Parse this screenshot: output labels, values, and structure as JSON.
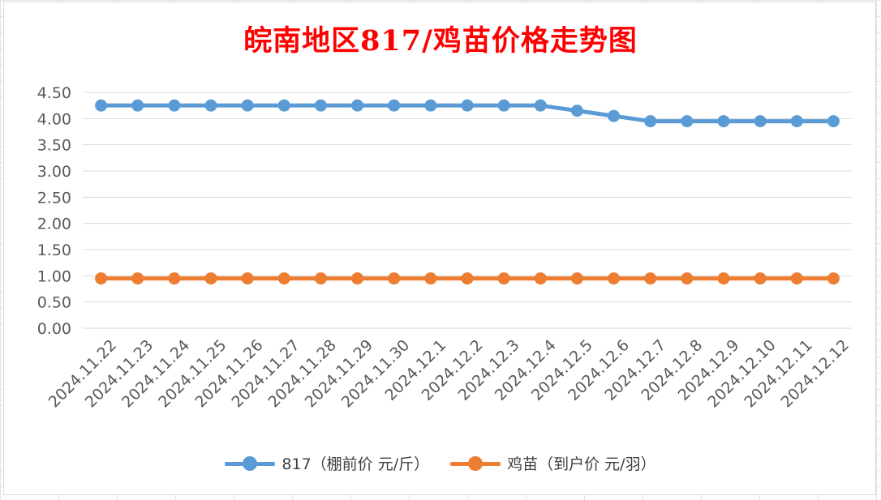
{
  "chart_data": {
    "type": "line",
    "title": "皖南地区817/鸡苗价格走势图",
    "categories": [
      "2024.11.22",
      "2024.11.23",
      "2024.11.24",
      "2024.11.25",
      "2024.11.26",
      "2024.11.27",
      "2024.11.28",
      "2024.11.29",
      "2024.11.30",
      "2024.12.1",
      "2024.12.2",
      "2024.12.3",
      "2024.12.4",
      "2024.12.5",
      "2024.12.6",
      "2024.12.7",
      "2024.12.8",
      "2024.12.9",
      "2024.12.10",
      "2024.12.11",
      "2024.12.12"
    ],
    "series": [
      {
        "name": "817（棚前价 元/斤）",
        "color": "#5b9bd5",
        "values": [
          4.25,
          4.25,
          4.25,
          4.25,
          4.25,
          4.25,
          4.25,
          4.25,
          4.25,
          4.25,
          4.25,
          4.25,
          4.25,
          4.15,
          4.05,
          3.95,
          3.95,
          3.95,
          3.95,
          3.95,
          3.95
        ]
      },
      {
        "name": "鸡苗（到户价 元/羽）",
        "color": "#ed7d31",
        "values": [
          0.95,
          0.95,
          0.95,
          0.95,
          0.95,
          0.95,
          0.95,
          0.95,
          0.95,
          0.95,
          0.95,
          0.95,
          0.95,
          0.95,
          0.95,
          0.95,
          0.95,
          0.95,
          0.95,
          0.95,
          0.95
        ]
      }
    ],
    "ylim": [
      0,
      4.5
    ],
    "yticks": [
      "0.00",
      "0.50",
      "1.00",
      "1.50",
      "2.00",
      "2.50",
      "3.00",
      "3.50",
      "4.00",
      "4.50"
    ],
    "xlabel": "",
    "ylabel": "",
    "grid": true,
    "legend_position": "bottom",
    "title_color": "#ff0000"
  }
}
